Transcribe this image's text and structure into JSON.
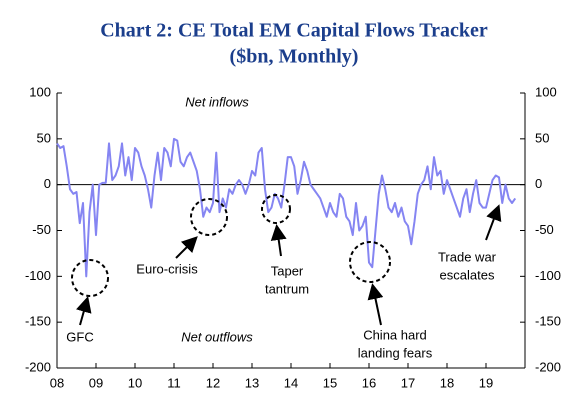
{
  "chart_data": {
    "type": "line",
    "title": [
      "Chart 2: CE Total EM Capital Flows Tracker",
      "($bn, Monthly)"
    ],
    "annotations": [
      [
        "Net inflows"
      ],
      [
        "Net outflows"
      ],
      [
        "GFC"
      ],
      [
        "Euro-crisis"
      ],
      [
        "Taper",
        "tantrum"
      ],
      [
        "China hard",
        "landing fears"
      ],
      [
        "Trade war",
        "escalates"
      ]
    ],
    "categories": [
      "08",
      null,
      null,
      null,
      null,
      null,
      null,
      null,
      null,
      null,
      null,
      null,
      "09",
      null,
      null,
      null,
      null,
      null,
      null,
      null,
      null,
      null,
      null,
      null,
      "10",
      null,
      null,
      null,
      null,
      null,
      null,
      null,
      null,
      null,
      null,
      null,
      "11",
      null,
      null,
      null,
      null,
      null,
      null,
      null,
      null,
      null,
      null,
      null,
      "12",
      null,
      null,
      null,
      null,
      null,
      null,
      null,
      null,
      null,
      null,
      null,
      "13",
      null,
      null,
      null,
      null,
      null,
      null,
      null,
      null,
      null,
      null,
      null,
      "14",
      null,
      null,
      null,
      null,
      null,
      null,
      null,
      null,
      null,
      null,
      null,
      "15",
      null,
      null,
      null,
      null,
      null,
      null,
      null,
      null,
      null,
      null,
      null,
      "16",
      null,
      null,
      null,
      null,
      null,
      null,
      null,
      null,
      null,
      null,
      null,
      "17",
      null,
      null,
      null,
      null,
      null,
      null,
      null,
      null,
      null,
      null,
      null,
      "18",
      null,
      null,
      null,
      null,
      null,
      null,
      null,
      null,
      null,
      null,
      null,
      "19",
      null,
      null,
      null,
      null,
      null,
      null,
      null,
      null,
      null
    ],
    "series": [
      {
        "color": "#8585f2",
        "values": [
          45,
          40,
          42,
          20,
          -5,
          -10,
          -8,
          -42,
          -20,
          -100,
          -30,
          0,
          -55,
          0,
          2,
          2,
          45,
          5,
          10,
          20,
          45,
          10,
          30,
          5,
          40,
          35,
          20,
          10,
          -5,
          -25,
          10,
          35,
          5,
          40,
          35,
          20,
          50,
          48,
          25,
          20,
          30,
          35,
          25,
          15,
          -5,
          -35,
          -25,
          -30,
          -20,
          35,
          -30,
          -15,
          -25,
          -5,
          -10,
          0,
          5,
          0,
          -10,
          0,
          15,
          10,
          35,
          40,
          -5,
          -30,
          -25,
          -10,
          -15,
          -25,
          0,
          30,
          30,
          20,
          -10,
          5,
          25,
          15,
          0,
          -5,
          -10,
          -15,
          -25,
          -35,
          -20,
          -30,
          -35,
          -10,
          -15,
          -35,
          -40,
          -55,
          -20,
          -50,
          -45,
          -35,
          -85,
          -90,
          -50,
          -10,
          10,
          -5,
          -25,
          -30,
          -20,
          -35,
          -25,
          -40,
          -45,
          -65,
          -40,
          -10,
          0,
          5,
          20,
          -5,
          30,
          10,
          15,
          -10,
          5,
          -5,
          -15,
          -25,
          -35,
          -15,
          -5,
          -30,
          -10,
          5,
          -20,
          -25,
          -25,
          -10,
          5,
          10,
          8,
          -20,
          0,
          -15,
          -20,
          -15
        ]
      }
    ],
    "ylim": [
      -200,
      100
    ],
    "yticks": [
      100,
      50,
      0,
      -50,
      -100,
      -150,
      -200
    ],
    "y2lim": [
      -200,
      100
    ],
    "y2ticks": [
      100,
      50,
      0,
      -50,
      -100,
      -150,
      -200
    ],
    "xcount": 144
  }
}
